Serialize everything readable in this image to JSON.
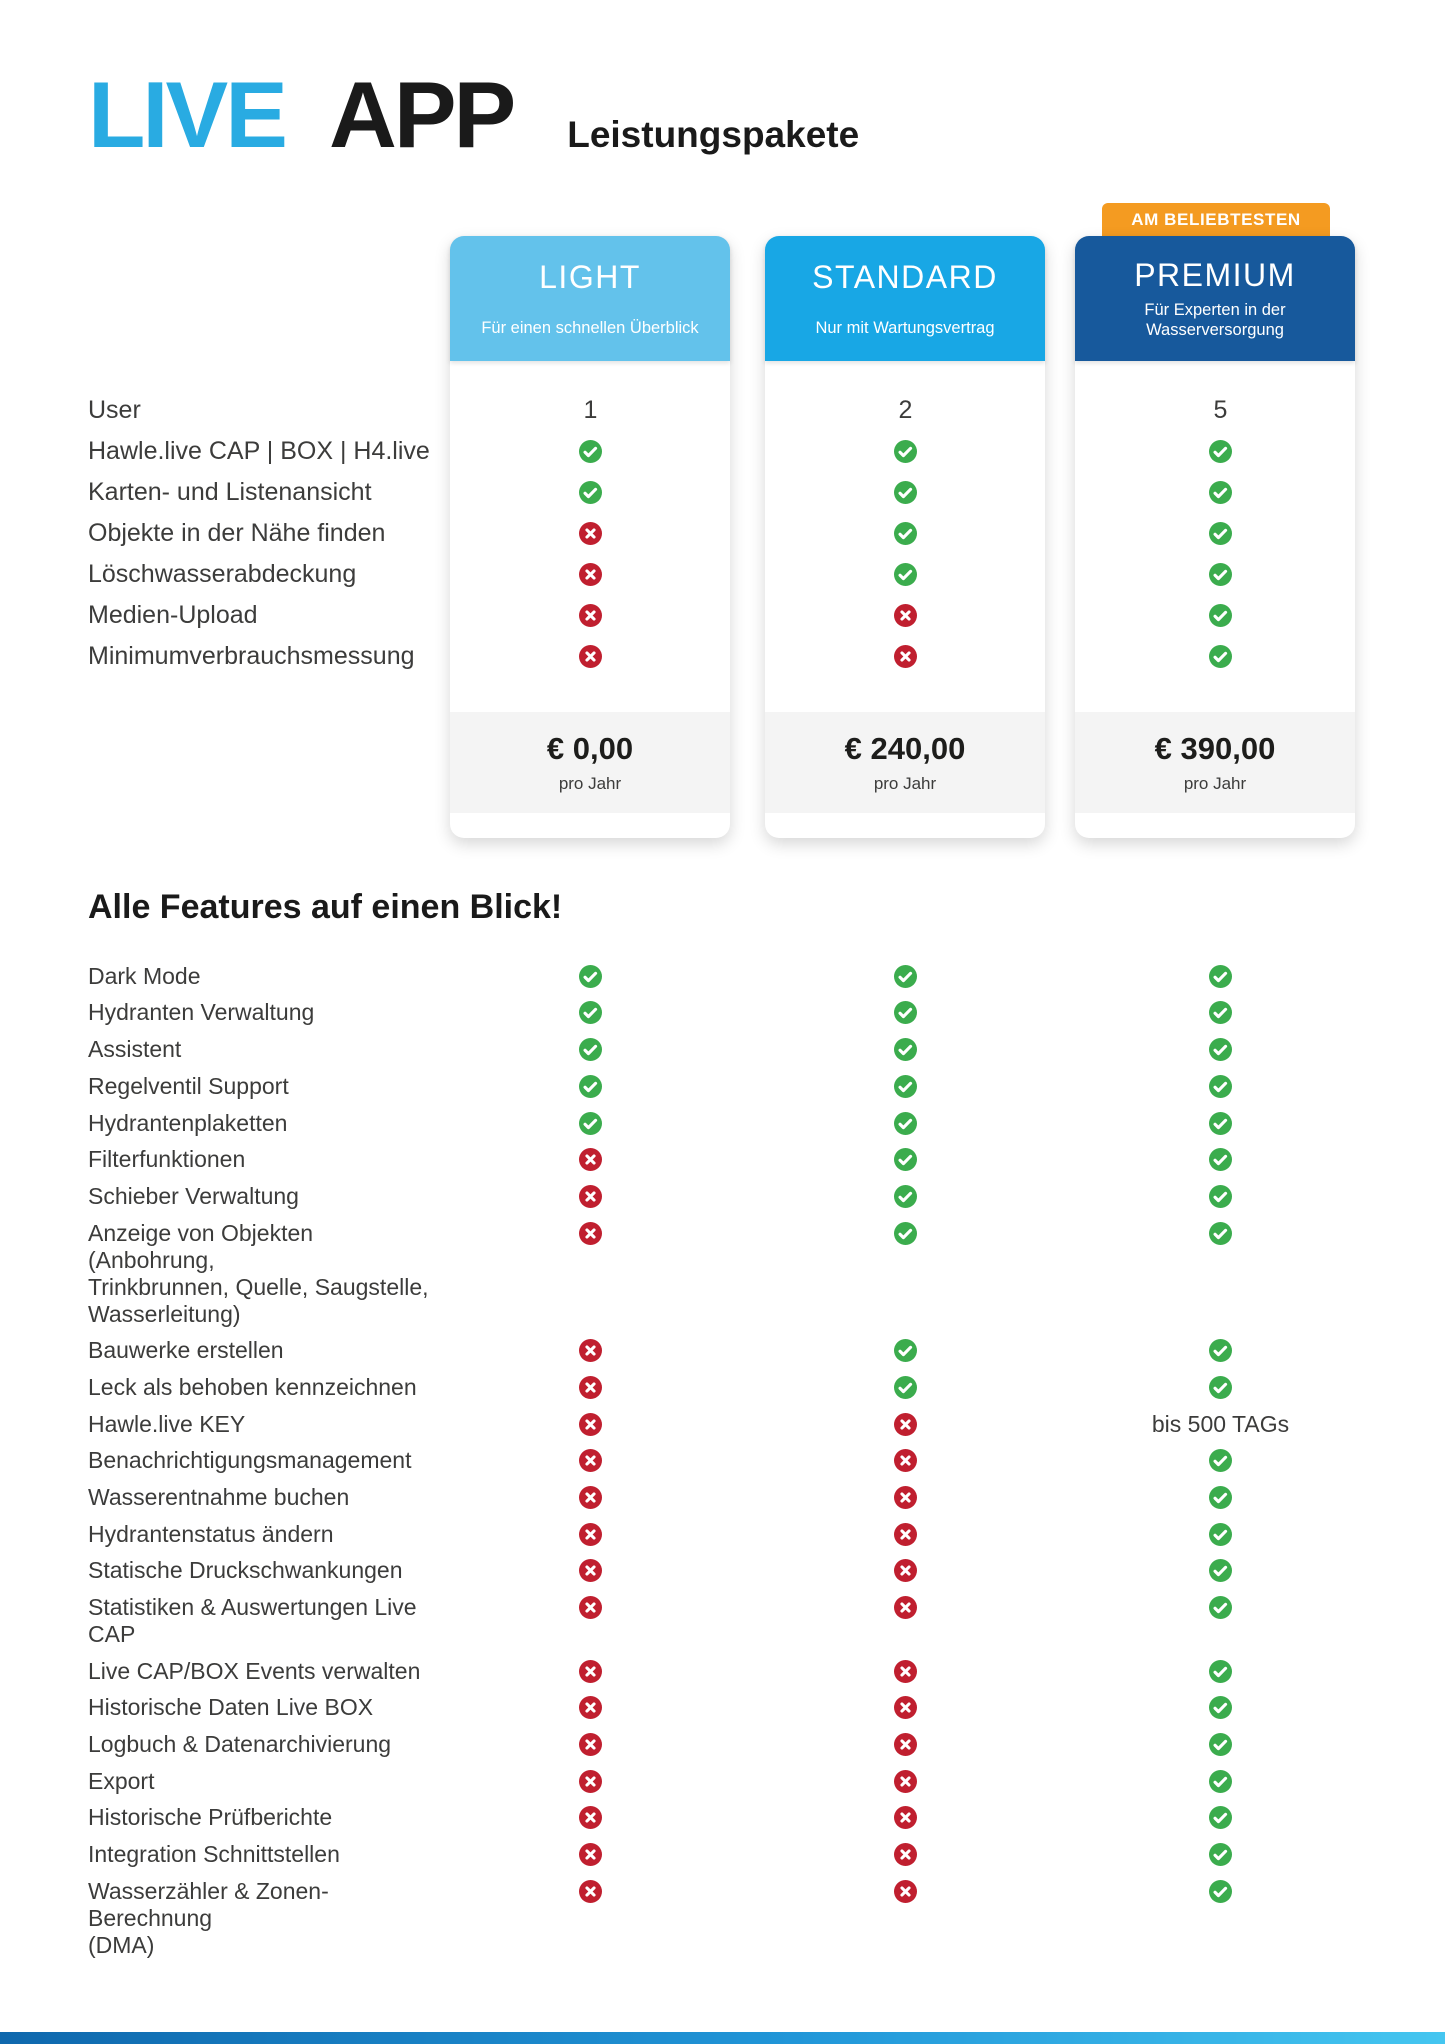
{
  "logo": {
    "live": "LIVE",
    "app": "APP",
    "subtitle": "Leistungspakete"
  },
  "badge": {
    "label": "AM BELIEBTESTEN"
  },
  "plans": [
    {
      "name": "LIGHT",
      "tagline": "Für einen schnellen Überblick",
      "price": "€ 0,00",
      "price_period": "pro Jahr"
    },
    {
      "name": "STANDARD",
      "tagline": "Nur mit Wartungsvertrag",
      "price": "€ 240,00",
      "price_period": "pro Jahr"
    },
    {
      "name": "PREMIUM",
      "tagline": "Für Experten in der\nWasserversorgung",
      "price": "€ 390,00",
      "price_period": "pro Jahr"
    }
  ],
  "comparison_rows": [
    {
      "label": "User",
      "values": [
        "1",
        "2",
        "5"
      ]
    },
    {
      "label": "Hawle.live CAP | BOX | H4.live",
      "values": [
        "check",
        "check",
        "check"
      ]
    },
    {
      "label": "Karten- und Listenansicht",
      "values": [
        "check",
        "check",
        "check"
      ]
    },
    {
      "label": "Objekte in der Nähe finden",
      "values": [
        "cross",
        "check",
        "check"
      ]
    },
    {
      "label": "Löschwasserabdeckung",
      "values": [
        "cross",
        "check",
        "check"
      ]
    },
    {
      "label": "Medien-Upload",
      "values": [
        "cross",
        "cross",
        "check"
      ]
    },
    {
      "label": "Minimumverbrauchsmessung",
      "values": [
        "cross",
        "cross",
        "check"
      ]
    }
  ],
  "features_heading": "Alle Features auf einen Blick!",
  "feature_rows": [
    {
      "label": "Dark Mode",
      "values": [
        "check",
        "check",
        "check"
      ]
    },
    {
      "label": "Hydranten Verwaltung",
      "values": [
        "check",
        "check",
        "check"
      ]
    },
    {
      "label": "Assistent",
      "values": [
        "check",
        "check",
        "check"
      ]
    },
    {
      "label": "Regelventil Support",
      "values": [
        "check",
        "check",
        "check"
      ]
    },
    {
      "label": "Hydrantenplaketten",
      "values": [
        "check",
        "check",
        "check"
      ]
    },
    {
      "label": "Filterfunktionen",
      "values": [
        "cross",
        "check",
        "check"
      ]
    },
    {
      "label": "Schieber Verwaltung",
      "values": [
        "cross",
        "check",
        "check"
      ]
    },
    {
      "label": "Anzeige von Objekten (Anbohrung,\nTrinkbrunnen, Quelle, Saugstelle,\nWasserleitung)",
      "values": [
        "cross",
        "check",
        "check"
      ]
    },
    {
      "label": "Bauwerke erstellen",
      "values": [
        "cross",
        "check",
        "check"
      ]
    },
    {
      "label": "Leck als behoben kennzeichnen",
      "values": [
        "cross",
        "check",
        "check"
      ]
    },
    {
      "label": "Hawle.live KEY",
      "values": [
        "cross",
        "cross",
        "bis 500 TAGs"
      ]
    },
    {
      "label": "Benachrichtigungsmanagement",
      "values": [
        "cross",
        "cross",
        "check"
      ]
    },
    {
      "label": "Wasserentnahme buchen",
      "values": [
        "cross",
        "cross",
        "check"
      ]
    },
    {
      "label": "Hydrantenstatus ändern",
      "values": [
        "cross",
        "cross",
        "check"
      ]
    },
    {
      "label": "Statische Druckschwankungen",
      "values": [
        "cross",
        "cross",
        "check"
      ]
    },
    {
      "label": "Statistiken &  Auswertungen Live CAP",
      "values": [
        "cross",
        "cross",
        "check"
      ]
    },
    {
      "label": "Live CAP/BOX Events verwalten",
      "values": [
        "cross",
        "cross",
        "check"
      ]
    },
    {
      "label": "Historische Daten Live BOX",
      "values": [
        "cross",
        "cross",
        "check"
      ]
    },
    {
      "label": "Logbuch & Datenarchivierung",
      "values": [
        "cross",
        "cross",
        "check"
      ]
    },
    {
      "label": "Export",
      "values": [
        "cross",
        "cross",
        "check"
      ]
    },
    {
      "label": "Historische Prüfberichte",
      "values": [
        "cross",
        "cross",
        "check"
      ]
    },
    {
      "label": "Integration Schnittstellen",
      "values": [
        "cross",
        "cross",
        "check"
      ]
    },
    {
      "label": "Wasserzähler & Zonen-Berechnung\n(DMA)",
      "values": [
        "cross",
        "cross",
        "check"
      ]
    }
  ],
  "colors": {
    "logo_live": "#29abe2",
    "badge": "#f49b21",
    "plan_light": "#63c2eb",
    "plan_standard": "#18a7e5",
    "plan_premium": "#17599c",
    "check": "#3bac4d",
    "cross": "#c01f2f"
  }
}
